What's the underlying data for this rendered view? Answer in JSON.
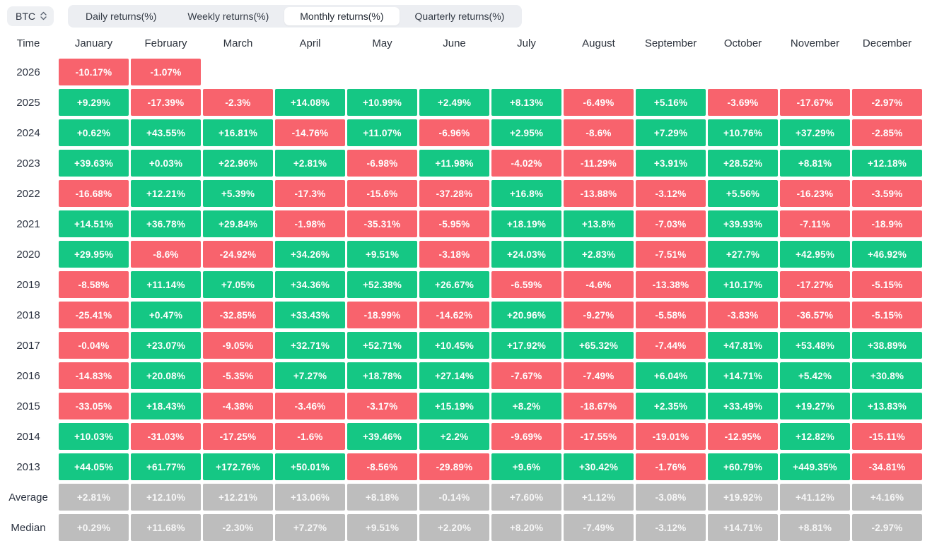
{
  "colors": {
    "positive": "#15c784",
    "negative": "#f8636d",
    "neutral": "#bdbdbd"
  },
  "toolbar": {
    "symbol": "BTC",
    "symbol_updown_icon": "updown-chevrons",
    "tabs": [
      {
        "label": "Daily returns(%)",
        "active": false
      },
      {
        "label": "Weekly returns(%)",
        "active": false
      },
      {
        "label": "Monthly returns(%)",
        "active": true
      },
      {
        "label": "Quarterly returns(%)",
        "active": false
      }
    ]
  },
  "table": {
    "time_header": "Time",
    "months": [
      "January",
      "February",
      "March",
      "April",
      "May",
      "June",
      "July",
      "August",
      "September",
      "October",
      "November",
      "December"
    ],
    "rows": [
      {
        "label": "2026",
        "type": "year",
        "values": [
          "-10.17%",
          "-1.07%",
          null,
          null,
          null,
          null,
          null,
          null,
          null,
          null,
          null,
          null
        ]
      },
      {
        "label": "2025",
        "type": "year",
        "values": [
          "+9.29%",
          "-17.39%",
          "-2.3%",
          "+14.08%",
          "+10.99%",
          "+2.49%",
          "+8.13%",
          "-6.49%",
          "+5.16%",
          "-3.69%",
          "-17.67%",
          "-2.97%"
        ]
      },
      {
        "label": "2024",
        "type": "year",
        "values": [
          "+0.62%",
          "+43.55%",
          "+16.81%",
          "-14.76%",
          "+11.07%",
          "-6.96%",
          "+2.95%",
          "-8.6%",
          "+7.29%",
          "+10.76%",
          "+37.29%",
          "-2.85%"
        ]
      },
      {
        "label": "2023",
        "type": "year",
        "values": [
          "+39.63%",
          "+0.03%",
          "+22.96%",
          "+2.81%",
          "-6.98%",
          "+11.98%",
          "-4.02%",
          "-11.29%",
          "+3.91%",
          "+28.52%",
          "+8.81%",
          "+12.18%"
        ]
      },
      {
        "label": "2022",
        "type": "year",
        "values": [
          "-16.68%",
          "+12.21%",
          "+5.39%",
          "-17.3%",
          "-15.6%",
          "-37.28%",
          "+16.8%",
          "-13.88%",
          "-3.12%",
          "+5.56%",
          "-16.23%",
          "-3.59%"
        ]
      },
      {
        "label": "2021",
        "type": "year",
        "values": [
          "+14.51%",
          "+36.78%",
          "+29.84%",
          "-1.98%",
          "-35.31%",
          "-5.95%",
          "+18.19%",
          "+13.8%",
          "-7.03%",
          "+39.93%",
          "-7.11%",
          "-18.9%"
        ]
      },
      {
        "label": "2020",
        "type": "year",
        "values": [
          "+29.95%",
          "-8.6%",
          "-24.92%",
          "+34.26%",
          "+9.51%",
          "-3.18%",
          "+24.03%",
          "+2.83%",
          "-7.51%",
          "+27.7%",
          "+42.95%",
          "+46.92%"
        ]
      },
      {
        "label": "2019",
        "type": "year",
        "values": [
          "-8.58%",
          "+11.14%",
          "+7.05%",
          "+34.36%",
          "+52.38%",
          "+26.67%",
          "-6.59%",
          "-4.6%",
          "-13.38%",
          "+10.17%",
          "-17.27%",
          "-5.15%"
        ]
      },
      {
        "label": "2018",
        "type": "year",
        "values": [
          "-25.41%",
          "+0.47%",
          "-32.85%",
          "+33.43%",
          "-18.99%",
          "-14.62%",
          "+20.96%",
          "-9.27%",
          "-5.58%",
          "-3.83%",
          "-36.57%",
          "-5.15%"
        ]
      },
      {
        "label": "2017",
        "type": "year",
        "values": [
          "-0.04%",
          "+23.07%",
          "-9.05%",
          "+32.71%",
          "+52.71%",
          "+10.45%",
          "+17.92%",
          "+65.32%",
          "-7.44%",
          "+47.81%",
          "+53.48%",
          "+38.89%"
        ]
      },
      {
        "label": "2016",
        "type": "year",
        "values": [
          "-14.83%",
          "+20.08%",
          "-5.35%",
          "+7.27%",
          "+18.78%",
          "+27.14%",
          "-7.67%",
          "-7.49%",
          "+6.04%",
          "+14.71%",
          "+5.42%",
          "+30.8%"
        ]
      },
      {
        "label": "2015",
        "type": "year",
        "values": [
          "-33.05%",
          "+18.43%",
          "-4.38%",
          "-3.46%",
          "-3.17%",
          "+15.19%",
          "+8.2%",
          "-18.67%",
          "+2.35%",
          "+33.49%",
          "+19.27%",
          "+13.83%"
        ]
      },
      {
        "label": "2014",
        "type": "year",
        "values": [
          "+10.03%",
          "-31.03%",
          "-17.25%",
          "-1.6%",
          "+39.46%",
          "+2.2%",
          "-9.69%",
          "-17.55%",
          "-19.01%",
          "-12.95%",
          "+12.82%",
          "-15.11%"
        ]
      },
      {
        "label": "2013",
        "type": "year",
        "values": [
          "+44.05%",
          "+61.77%",
          "+172.76%",
          "+50.01%",
          "-8.56%",
          "-29.89%",
          "+9.6%",
          "+30.42%",
          "-1.76%",
          "+60.79%",
          "+449.35%",
          "-34.81%"
        ]
      },
      {
        "label": "Average",
        "type": "summary",
        "values": [
          "+2.81%",
          "+12.10%",
          "+12.21%",
          "+13.06%",
          "+8.18%",
          "-0.14%",
          "+7.60%",
          "+1.12%",
          "-3.08%",
          "+19.92%",
          "+41.12%",
          "+4.16%"
        ]
      },
      {
        "label": "Median",
        "type": "summary",
        "values": [
          "+0.29%",
          "+11.68%",
          "-2.30%",
          "+7.27%",
          "+9.51%",
          "+2.20%",
          "+8.20%",
          "-7.49%",
          "-3.12%",
          "+14.71%",
          "+8.81%",
          "-2.97%"
        ]
      }
    ]
  }
}
